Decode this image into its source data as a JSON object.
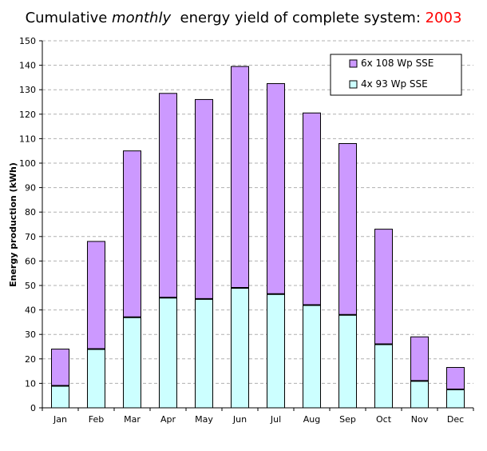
{
  "chart_data": {
    "type": "bar",
    "stacked": true,
    "title_parts": {
      "prefix": "Cumulative ",
      "emphasis": "monthly",
      "middle": "  energy yield of complete system: ",
      "year": "2003"
    },
    "ylabel": "Energy production (kWh)",
    "ylim": [
      0,
      150
    ],
    "ytick_step": 10,
    "categories": [
      "Jan",
      "Feb",
      "Mar",
      "Apr",
      "May",
      "Jun",
      "Jul",
      "Aug",
      "Sep",
      "Oct",
      "Nov",
      "Dec"
    ],
    "series": [
      {
        "name": "4x 93 Wp SSE",
        "color": "#ccffff",
        "values": [
          9,
          24,
          37,
          45,
          44.5,
          49,
          46.5,
          42,
          38,
          26,
          11,
          7.5
        ]
      },
      {
        "name": "6x 108 Wp SSE",
        "color": "#cc99ff",
        "values": [
          15,
          44,
          68,
          83.5,
          81.5,
          90.5,
          86,
          78.5,
          70,
          47,
          18,
          9
        ]
      }
    ],
    "totals": [
      24,
      68,
      105,
      128.5,
      126,
      139.5,
      132.5,
      120.5,
      108,
      73,
      29,
      16.5
    ],
    "grid": "dashed horizontal",
    "legend_position": "top-right",
    "year_color": "#ff0000"
  }
}
